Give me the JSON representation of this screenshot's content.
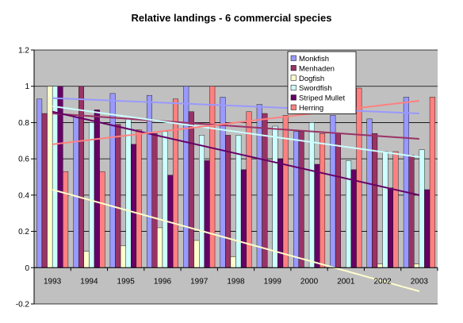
{
  "chart_data": {
    "type": "bar",
    "title": "Relative landings - 6 commercial species",
    "xlabel": "",
    "ylabel": "",
    "ylim": [
      -0.2,
      1.2
    ],
    "yticks": [
      "-0.2",
      "0",
      "0.2",
      "0.4",
      "0.6",
      "0.8",
      "1",
      "1.2"
    ],
    "ytick_values": [
      -0.2,
      0,
      0.2,
      0.4,
      0.6,
      0.8,
      1,
      1.2
    ],
    "grid": "horizontal",
    "legend_position": "top-right",
    "plot_background": "#c0c0c0",
    "categories": [
      "1993",
      "1994",
      "1995",
      "1996",
      "1997",
      "1998",
      "1999",
      "2000",
      "2001",
      "2002",
      "2003"
    ],
    "series": [
      {
        "name": "Monkfish",
        "color": "#9999ff",
        "values": [
          0.93,
          0.83,
          0.96,
          0.95,
          1.0,
          0.94,
          0.9,
          0.75,
          0.84,
          0.82,
          0.94
        ],
        "trend": [
          0.935,
          0.85
        ]
      },
      {
        "name": "Menhaden",
        "color": "#993366",
        "values": [
          0.85,
          1.0,
          0.79,
          0.74,
          0.86,
          0.73,
          0.85,
          0.75,
          0.74,
          0.74,
          0.62
        ],
        "trend": [
          0.85,
          0.71
        ]
      },
      {
        "name": "Dogfish",
        "color": "#ffffcc",
        "values": [
          1.0,
          0.09,
          0.12,
          0.22,
          0.15,
          0.06,
          0.0,
          0.0,
          0.0,
          0.02,
          0.02
        ],
        "trend": [
          0.43,
          -0.13
        ]
      },
      {
        "name": "Swordfish",
        "color": "#ccffff",
        "values": [
          1.0,
          0.8,
          0.82,
          0.75,
          0.73,
          0.73,
          0.78,
          0.8,
          0.59,
          0.64,
          0.65
        ],
        "trend": [
          0.89,
          0.61
        ]
      },
      {
        "name": "Striped Mullet",
        "color": "#660066",
        "values": [
          1.0,
          0.87,
          0.68,
          0.51,
          0.59,
          0.54,
          0.6,
          0.57,
          0.54,
          0.44,
          0.43
        ],
        "trend": [
          0.86,
          0.4
        ]
      },
      {
        "name": "Herring",
        "color": "#ff8080",
        "values": [
          0.53,
          0.53,
          0.76,
          0.93,
          1.0,
          0.86,
          0.84,
          0.74,
          0.99,
          0.64,
          0.94
        ],
        "trend": [
          0.68,
          0.92
        ]
      }
    ]
  }
}
